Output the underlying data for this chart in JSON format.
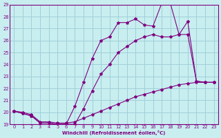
{
  "xlabel": "Windchill (Refroidissement éolien,°C)",
  "bg_color": "#c8eef0",
  "line_color": "#800080",
  "grid_color": "#a0cfd8",
  "xlim": [
    -0.5,
    23.5
  ],
  "ylim": [
    19,
    29
  ],
  "xticks": [
    0,
    1,
    2,
    3,
    4,
    5,
    6,
    7,
    8,
    9,
    10,
    11,
    12,
    13,
    14,
    15,
    16,
    17,
    18,
    19,
    20,
    21,
    22,
    23
  ],
  "yticks": [
    19,
    20,
    21,
    22,
    23,
    24,
    25,
    26,
    27,
    28,
    29
  ],
  "curve1_x": [
    0,
    1,
    2,
    3,
    4,
    5,
    6,
    7,
    8,
    9,
    10,
    11,
    12,
    13,
    14,
    15,
    16,
    17,
    18,
    19,
    20,
    21,
    22,
    23
  ],
  "curve1_y": [
    20.1,
    20.0,
    19.8,
    19.2,
    19.2,
    19.1,
    19.1,
    19.2,
    19.5,
    19.8,
    20.1,
    20.4,
    20.7,
    21.0,
    21.3,
    21.5,
    21.7,
    21.9,
    22.1,
    22.3,
    22.4,
    22.5,
    22.5,
    22.5
  ],
  "curve2_x": [
    0,
    1,
    2,
    3,
    4,
    5,
    6,
    7,
    8,
    9,
    10,
    11,
    12,
    13,
    14,
    15,
    16,
    17,
    18,
    19,
    20,
    21,
    22,
    23
  ],
  "curve2_y": [
    20.1,
    19.9,
    19.7,
    19.1,
    19.1,
    19.0,
    19.0,
    20.5,
    22.5,
    24.5,
    26.0,
    26.3,
    27.5,
    27.5,
    27.8,
    27.3,
    27.2,
    29.1,
    29.1,
    26.5,
    27.6,
    22.6,
    22.5,
    22.5
  ],
  "curve3_x": [
    0,
    1,
    2,
    3,
    4,
    5,
    6,
    7,
    8,
    9,
    10,
    11,
    12,
    13,
    14,
    15,
    16,
    17,
    18,
    19,
    20,
    21,
    22,
    23
  ],
  "curve3_y": [
    20.1,
    19.9,
    19.7,
    19.1,
    19.1,
    19.0,
    19.0,
    19.0,
    20.3,
    21.8,
    23.2,
    24.0,
    25.0,
    25.5,
    26.0,
    26.3,
    26.5,
    26.3,
    26.3,
    26.5,
    26.5,
    22.6,
    22.5,
    22.5
  ]
}
